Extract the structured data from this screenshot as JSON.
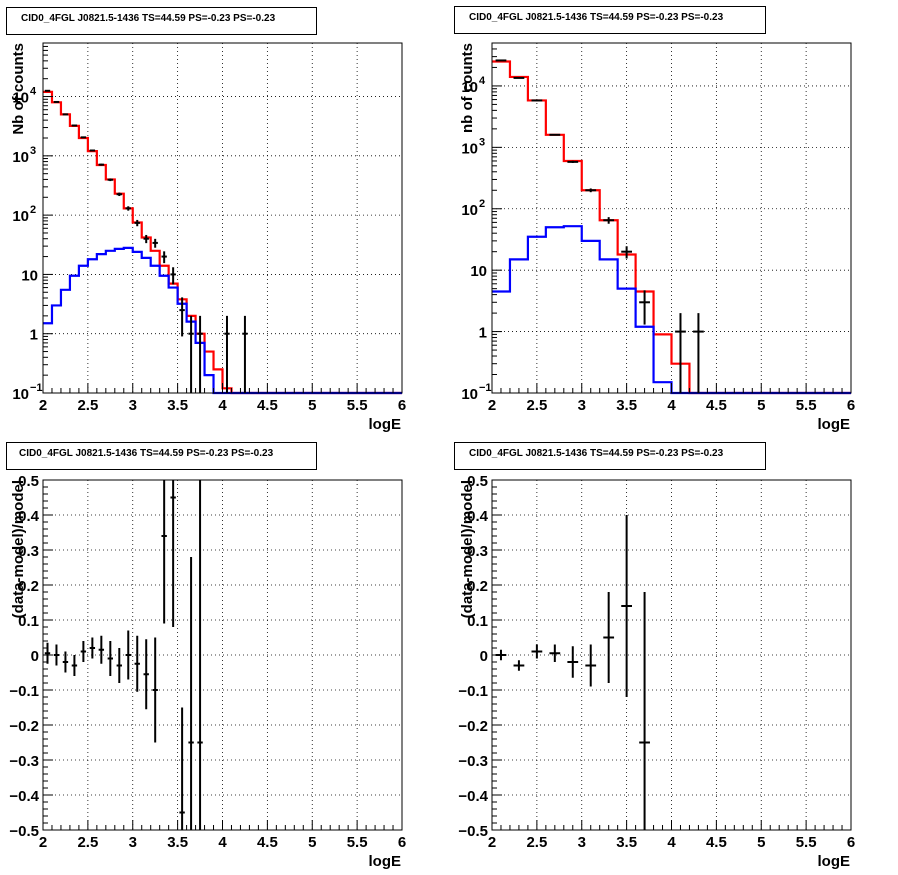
{
  "chart_data": [
    {
      "type": "line",
      "title": "CID0_4FGL J0821.5-1436 TS=44.59 PS=-0.23 PS=-0.23",
      "xlabel": "logE",
      "ylabel": "Nb of counts",
      "xlim": [
        2,
        6
      ],
      "ylim": [
        0.1,
        80000
      ],
      "log_y": true,
      "grid": true,
      "x_ticks": [
        "2",
        "2.5",
        "3",
        "3.5",
        "4",
        "4.5",
        "5",
        "5.5",
        "6"
      ],
      "y_ticks": [
        {
          "v": 0.1,
          "label": "10",
          "sup": "−1"
        },
        {
          "v": 1,
          "label": "1",
          "sup": ""
        },
        {
          "v": 10,
          "label": "10",
          "sup": ""
        },
        {
          "v": 100,
          "label": "10",
          "sup": "2"
        },
        {
          "v": 1000,
          "label": "10",
          "sup": "3"
        },
        {
          "v": 10000,
          "label": "10",
          "sup": "4"
        }
      ],
      "bin_edges": [
        2.0,
        2.1,
        2.2,
        2.3,
        2.4,
        2.5,
        2.6,
        2.7,
        2.8,
        2.9,
        3.0,
        3.1,
        3.2,
        3.3,
        3.4,
        3.5,
        3.6,
        3.7,
        3.8,
        3.9,
        4.0,
        4.1,
        4.2,
        4.3,
        4.4,
        4.5,
        4.6,
        4.7,
        4.8,
        4.9,
        5.0,
        5.1,
        5.2,
        5.3,
        5.4,
        5.5,
        5.6,
        5.7,
        5.8,
        5.9,
        6.0
      ],
      "series": [
        {
          "color": "#ff0000",
          "values": [
            12000,
            8000,
            5000,
            3200,
            2000,
            1200,
            700,
            400,
            230,
            130,
            75,
            42,
            25,
            14,
            7,
            3.8,
            2.0,
            1.0,
            0.5,
            0.25,
            0.12,
            0.1,
            0.1,
            0.1,
            0.1,
            0.1,
            0.1,
            0.1,
            0.1,
            0.1,
            0.1,
            0.1,
            0.1,
            0.1,
            0.1,
            0.1,
            0.1,
            0.1,
            0.1,
            0.1
          ]
        },
        {
          "color": "#0000ff",
          "values": [
            1.5,
            3.0,
            5.5,
            9.5,
            14,
            18,
            22,
            25,
            27,
            28,
            24,
            19,
            14,
            9.5,
            6,
            3.2,
            1.6,
            0.7,
            0.2,
            0.1,
            0.1,
            0.1,
            0.1,
            0.1,
            0.1,
            0.1,
            0.1,
            0.1,
            0.1,
            0.1,
            0.1,
            0.1,
            0.1,
            0.1,
            0.1,
            0.1,
            0.1,
            0.1,
            0.1,
            0.1
          ]
        }
      ],
      "data_points": [
        {
          "x": 2.05,
          "y": 12500,
          "err": 110
        },
        {
          "x": 2.15,
          "y": 8100,
          "err": 90
        },
        {
          "x": 2.25,
          "y": 5000,
          "err": 70
        },
        {
          "x": 2.35,
          "y": 3250,
          "err": 57
        },
        {
          "x": 2.45,
          "y": 2050,
          "err": 45
        },
        {
          "x": 2.55,
          "y": 1230,
          "err": 35
        },
        {
          "x": 2.65,
          "y": 710,
          "err": 27
        },
        {
          "x": 2.75,
          "y": 395,
          "err": 20
        },
        {
          "x": 2.85,
          "y": 225,
          "err": 15
        },
        {
          "x": 2.95,
          "y": 130,
          "err": 11
        },
        {
          "x": 3.05,
          "y": 74,
          "err": 9
        },
        {
          "x": 3.15,
          "y": 40,
          "err": 6.3
        },
        {
          "x": 3.25,
          "y": 34,
          "err": 5.8
        },
        {
          "x": 3.35,
          "y": 20,
          "err": 4.5
        },
        {
          "x": 3.45,
          "y": 10,
          "err": 3.2
        },
        {
          "x": 3.55,
          "y": 2.5,
          "err": 1.6
        },
        {
          "x": 3.65,
          "y": 1,
          "err": 1
        },
        {
          "x": 3.75,
          "y": 1,
          "err": 1
        },
        {
          "x": 4.05,
          "y": 1,
          "err": 1
        },
        {
          "x": 4.25,
          "y": 1,
          "err": 1
        }
      ]
    },
    {
      "type": "line",
      "title": "CID0_4FGL J0821.5-1436 TS=44.59 PS=-0.23 PS=-0.23",
      "xlabel": "logE",
      "ylabel": "nb of counts",
      "xlim": [
        2,
        6
      ],
      "ylim": [
        0.1,
        50000
      ],
      "log_y": true,
      "grid": true,
      "x_ticks": [
        "2",
        "2.5",
        "3",
        "3.5",
        "4",
        "4.5",
        "5",
        "5.5",
        "6"
      ],
      "y_ticks": [
        {
          "v": 0.1,
          "label": "10",
          "sup": "−1"
        },
        {
          "v": 1,
          "label": "1",
          "sup": ""
        },
        {
          "v": 10,
          "label": "10",
          "sup": ""
        },
        {
          "v": 100,
          "label": "10",
          "sup": "2"
        },
        {
          "v": 1000,
          "label": "10",
          "sup": "3"
        },
        {
          "v": 10000,
          "label": "10",
          "sup": "4"
        }
      ],
      "bin_edges": [
        2.0,
        2.2,
        2.4,
        2.6,
        2.8,
        3.0,
        3.2,
        3.4,
        3.6,
        3.8,
        4.0,
        4.2,
        4.4,
        4.6,
        4.8,
        5.0,
        5.2,
        5.4,
        5.6,
        5.8,
        6.0
      ],
      "series": [
        {
          "color": "#ff0000",
          "values": [
            25000,
            14000,
            5800,
            1600,
            600,
            200,
            65,
            18,
            4.5,
            0.9,
            0.3,
            0.1,
            0.1,
            0.1,
            0.1,
            0.1,
            0.1,
            0.1,
            0.1,
            0.1
          ]
        },
        {
          "color": "#0000ff",
          "values": [
            4.5,
            15,
            35,
            50,
            52,
            30,
            15,
            5,
            1.2,
            0.15,
            0.1,
            0.1,
            0.1,
            0.1,
            0.1,
            0.1,
            0.1,
            0.1,
            0.1,
            0.1
          ]
        }
      ],
      "data_points": [
        {
          "x": 2.1,
          "y": 26000,
          "err": 160
        },
        {
          "x": 2.3,
          "y": 13500,
          "err": 115
        },
        {
          "x": 2.5,
          "y": 5800,
          "err": 75
        },
        {
          "x": 2.7,
          "y": 1600,
          "err": 40
        },
        {
          "x": 2.9,
          "y": 580,
          "err": 24
        },
        {
          "x": 3.1,
          "y": 200,
          "err": 14
        },
        {
          "x": 3.3,
          "y": 65,
          "err": 8
        },
        {
          "x": 3.5,
          "y": 20,
          "err": 4.5
        },
        {
          "x": 3.7,
          "y": 3,
          "err": 1.7
        },
        {
          "x": 4.1,
          "y": 1,
          "err": 1
        },
        {
          "x": 4.3,
          "y": 1,
          "err": 1
        }
      ]
    },
    {
      "type": "scatter",
      "title": "CID0_4FGL J0821.5-1436 TS=44.59 PS=-0.23 PS=-0.23",
      "xlabel": "logE",
      "ylabel": "(data-model)/model",
      "xlim": [
        2,
        6
      ],
      "ylim": [
        -0.5,
        0.5
      ],
      "grid": true,
      "x_ticks": [
        "2",
        "2.5",
        "3",
        "3.5",
        "4",
        "4.5",
        "5",
        "5.5",
        "6"
      ],
      "y_ticks_values": [
        -0.5,
        -0.4,
        -0.3,
        -0.2,
        -0.1,
        0,
        0.1,
        0.2,
        0.3,
        0.4,
        0.5
      ],
      "y_ticks": [
        "−0.5",
        "−0.4",
        "−0.3",
        "−0.2",
        "−0.1",
        "0",
        "0.1",
        "0.2",
        "0.3",
        "0.4",
        "0.5"
      ],
      "data_points": [
        {
          "x": 2.05,
          "y": 0.005,
          "err": 0.03
        },
        {
          "x": 2.15,
          "y": 0.0,
          "err": 0.03
        },
        {
          "x": 2.25,
          "y": -0.02,
          "err": 0.03
        },
        {
          "x": 2.35,
          "y": -0.03,
          "err": 0.03
        },
        {
          "x": 2.45,
          "y": 0.01,
          "err": 0.03
        },
        {
          "x": 2.55,
          "y": 0.02,
          "err": 0.03
        },
        {
          "x": 2.65,
          "y": 0.015,
          "err": 0.04
        },
        {
          "x": 2.75,
          "y": -0.01,
          "err": 0.05
        },
        {
          "x": 2.85,
          "y": -0.03,
          "err": 0.05
        },
        {
          "x": 2.95,
          "y": 0.0,
          "err": 0.07
        },
        {
          "x": 3.05,
          "y": -0.025,
          "err": 0.08
        },
        {
          "x": 3.15,
          "y": -0.055,
          "err": 0.1
        },
        {
          "x": 3.25,
          "y": -0.1,
          "err": 0.15
        },
        {
          "x": 3.35,
          "y": 0.34,
          "err": 0.25
        },
        {
          "x": 3.45,
          "y": 0.45,
          "err": 0.37
        },
        {
          "x": 3.55,
          "y": -0.45,
          "err": 0.3
        },
        {
          "x": 3.65,
          "y": -0.25,
          "err": 0.53
        },
        {
          "x": 3.75,
          "y": -0.25,
          "err": 0.75
        }
      ]
    },
    {
      "type": "scatter",
      "title": "CID0_4FGL J0821.5-1436 TS=44.59 PS=-0.23 PS=-0.23",
      "xlabel": "logE",
      "ylabel": "(data-model)/model",
      "xlim": [
        2,
        6
      ],
      "ylim": [
        -0.5,
        0.5
      ],
      "grid": true,
      "x_ticks": [
        "2",
        "2.5",
        "3",
        "3.5",
        "4",
        "4.5",
        "5",
        "5.5",
        "6"
      ],
      "y_ticks_values": [
        -0.5,
        -0.4,
        -0.3,
        -0.2,
        -0.1,
        0,
        0.1,
        0.2,
        0.3,
        0.4,
        0.5
      ],
      "y_ticks": [
        "−0.5",
        "−0.4",
        "−0.3",
        "−0.2",
        "−0.1",
        "0",
        "0.1",
        "0.2",
        "0.3",
        "0.4",
        "0.5"
      ],
      "data_points": [
        {
          "x": 2.1,
          "y": 0.0,
          "err": 0.015,
          "xerr": 0.1
        },
        {
          "x": 2.3,
          "y": -0.03,
          "err": 0.015,
          "xerr": 0.1
        },
        {
          "x": 2.5,
          "y": 0.01,
          "err": 0.02,
          "xerr": 0.1
        },
        {
          "x": 2.7,
          "y": 0.005,
          "err": 0.025,
          "xerr": 0.1
        },
        {
          "x": 2.9,
          "y": -0.02,
          "err": 0.045,
          "xerr": 0.1
        },
        {
          "x": 3.1,
          "y": -0.03,
          "err": 0.06,
          "xerr": 0.1
        },
        {
          "x": 3.3,
          "y": 0.05,
          "err": 0.13,
          "xerr": 0.1
        },
        {
          "x": 3.5,
          "y": 0.14,
          "err": 0.26,
          "xerr": 0.1
        },
        {
          "x": 3.7,
          "y": -0.25,
          "err": 0.43,
          "xerr": 0.1
        }
      ]
    }
  ]
}
